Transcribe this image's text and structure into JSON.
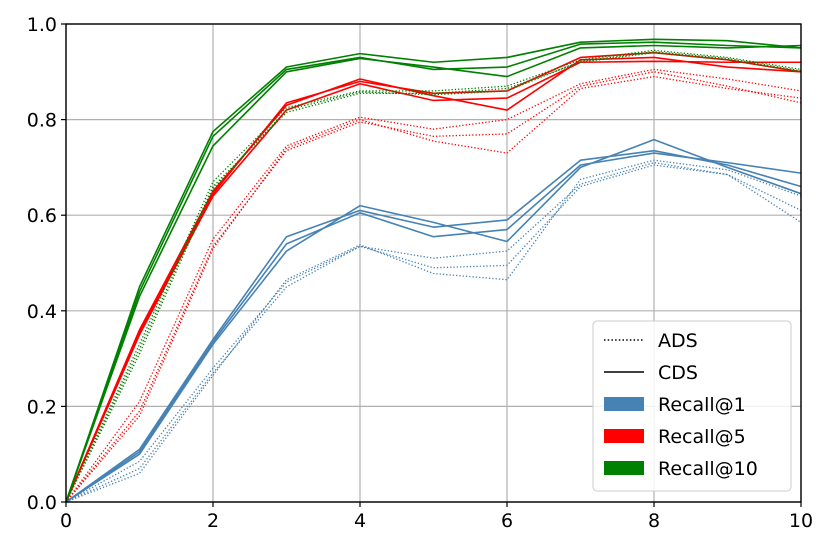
{
  "chart_data": {
    "type": "line",
    "title": "",
    "xlabel": "",
    "ylabel": "",
    "xlim": [
      0,
      10
    ],
    "ylim": [
      0,
      1.0
    ],
    "grid": true,
    "x_ticks": [
      "0",
      "2",
      "4",
      "6",
      "8",
      "10"
    ],
    "y_ticks": [
      "0.0",
      "0.2",
      "0.4",
      "0.6",
      "0.8",
      "1.0"
    ],
    "x": [
      0,
      1,
      2,
      3,
      4,
      5,
      6,
      7,
      8,
      9,
      10
    ],
    "colors": {
      "Recall@1": "#4682b4",
      "Recall@5": "#ff0000",
      "Recall@10": "#008000"
    },
    "legend": {
      "position": "lower-right",
      "entries": [
        {
          "label": "ADS",
          "kind": "line",
          "style": "dotted"
        },
        {
          "label": "CDS",
          "kind": "line",
          "style": "solid"
        },
        {
          "label": "Recall@1",
          "kind": "patch",
          "color": "#4682b4"
        },
        {
          "label": "Recall@5",
          "kind": "patch",
          "color": "#ff0000"
        },
        {
          "label": "Recall@10",
          "kind": "patch",
          "color": "#008000"
        }
      ]
    },
    "series": [
      {
        "metric": "Recall@1",
        "style": "solid",
        "values": [
          0,
          0.11,
          0.34,
          0.555,
          0.61,
          0.575,
          0.59,
          0.715,
          0.735,
          0.705,
          0.66
        ]
      },
      {
        "metric": "Recall@1",
        "style": "solid",
        "values": [
          0,
          0.1,
          0.33,
          0.525,
          0.62,
          0.585,
          0.545,
          0.7,
          0.758,
          0.7,
          0.645
        ]
      },
      {
        "metric": "Recall@1",
        "style": "solid",
        "values": [
          0,
          0.105,
          0.335,
          0.54,
          0.605,
          0.555,
          0.57,
          0.705,
          0.73,
          0.71,
          0.688
        ]
      },
      {
        "metric": "Recall@1",
        "style": "dotted",
        "values": [
          0,
          0.085,
          0.28,
          0.46,
          0.535,
          0.51,
          0.525,
          0.665,
          0.71,
          0.685,
          0.585
        ]
      },
      {
        "metric": "Recall@1",
        "style": "dotted",
        "values": [
          0,
          0.07,
          0.27,
          0.45,
          0.535,
          0.49,
          0.495,
          0.66,
          0.705,
          0.685,
          0.61
        ]
      },
      {
        "metric": "Recall@1",
        "style": "dotted",
        "values": [
          0,
          0.06,
          0.265,
          0.465,
          0.538,
          0.478,
          0.465,
          0.675,
          0.715,
          0.695,
          0.64
        ]
      },
      {
        "metric": "Recall@5",
        "style": "solid",
        "values": [
          0,
          0.36,
          0.65,
          0.83,
          0.885,
          0.85,
          0.82,
          0.925,
          0.93,
          0.91,
          0.9
        ]
      },
      {
        "metric": "Recall@5",
        "style": "solid",
        "values": [
          0,
          0.35,
          0.64,
          0.82,
          0.875,
          0.84,
          0.845,
          0.92,
          0.922,
          0.92,
          0.92
        ]
      },
      {
        "metric": "Recall@5",
        "style": "solid",
        "values": [
          0,
          0.355,
          0.645,
          0.835,
          0.88,
          0.855,
          0.86,
          0.93,
          0.94,
          0.925,
          0.9
        ]
      },
      {
        "metric": "Recall@5",
        "style": "dotted",
        "values": [
          0,
          0.21,
          0.55,
          0.745,
          0.805,
          0.78,
          0.8,
          0.875,
          0.905,
          0.885,
          0.86
        ]
      },
      {
        "metric": "Recall@5",
        "style": "dotted",
        "values": [
          0,
          0.19,
          0.535,
          0.735,
          0.795,
          0.765,
          0.77,
          0.87,
          0.9,
          0.87,
          0.835
        ]
      },
      {
        "metric": "Recall@5",
        "style": "dotted",
        "values": [
          0,
          0.18,
          0.53,
          0.74,
          0.8,
          0.755,
          0.73,
          0.865,
          0.89,
          0.865,
          0.845
        ]
      },
      {
        "metric": "Recall@10",
        "style": "solid",
        "values": [
          0,
          0.45,
          0.775,
          0.91,
          0.938,
          0.92,
          0.93,
          0.962,
          0.968,
          0.965,
          0.95
        ]
      },
      {
        "metric": "Recall@10",
        "style": "solid",
        "values": [
          0,
          0.44,
          0.765,
          0.905,
          0.93,
          0.905,
          0.91,
          0.958,
          0.962,
          0.955,
          0.95
        ]
      },
      {
        "metric": "Recall@10",
        "style": "solid",
        "values": [
          0,
          0.43,
          0.745,
          0.9,
          0.928,
          0.91,
          0.89,
          0.95,
          0.955,
          0.95,
          0.955
        ]
      },
      {
        "metric": "Recall@10",
        "style": "dotted",
        "values": [
          0,
          0.33,
          0.67,
          0.825,
          0.86,
          0.86,
          0.87,
          0.925,
          0.945,
          0.93,
          0.905
        ]
      },
      {
        "metric": "Recall@10",
        "style": "dotted",
        "values": [
          0,
          0.32,
          0.66,
          0.815,
          0.855,
          0.855,
          0.865,
          0.92,
          0.94,
          0.925,
          0.9
        ]
      },
      {
        "metric": "Recall@10",
        "style": "dotted",
        "values": [
          0,
          0.31,
          0.655,
          0.82,
          0.858,
          0.852,
          0.86,
          0.922,
          0.942,
          0.928,
          0.902
        ]
      }
    ]
  }
}
